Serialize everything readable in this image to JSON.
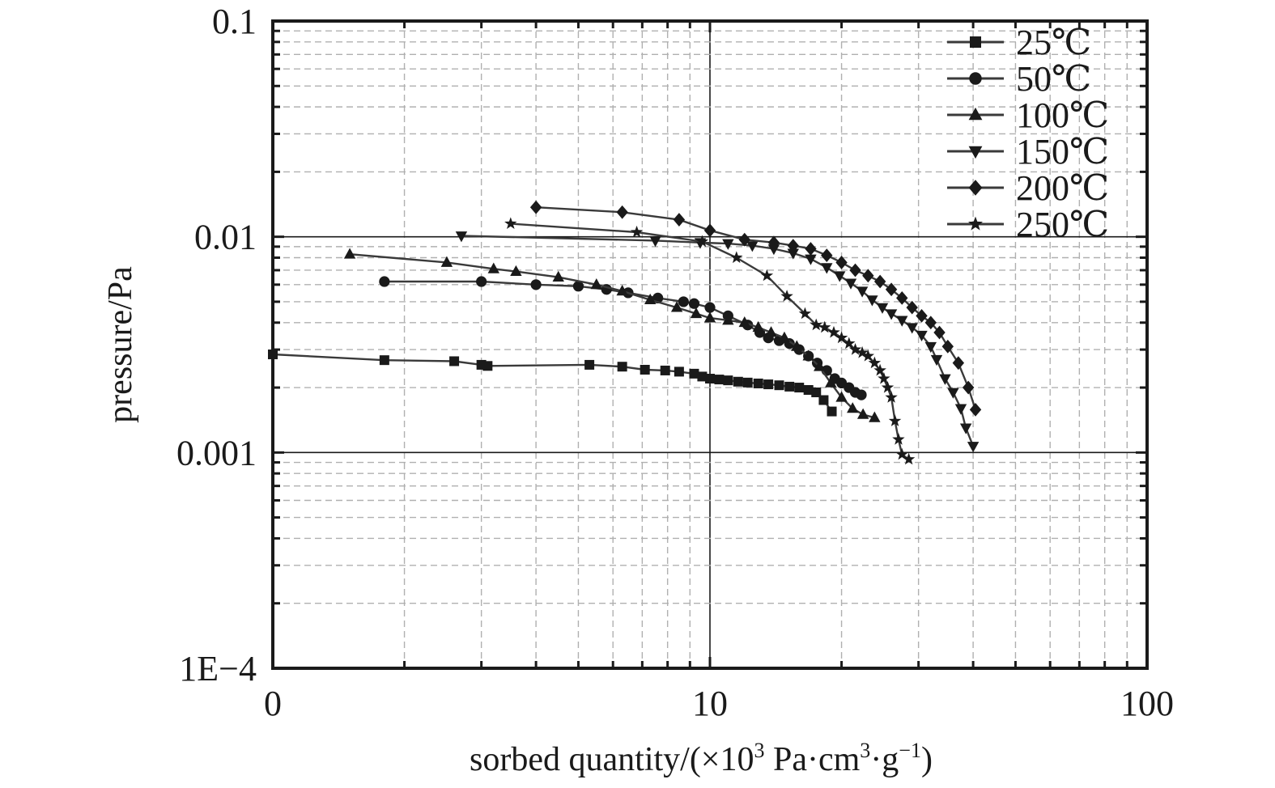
{
  "chart_data": {
    "type": "line",
    "title": "",
    "xlabel": "sorbed quantity/(×10",
    "xlabel_sup1": "3",
    "xlabel_mid": " Pa·cm",
    "xlabel_sup2": "3",
    "xlabel_mid2": "·g",
    "xlabel_sup3": "−1",
    "xlabel_end": ")",
    "ylabel": "pressure/Pa",
    "xscale": "log",
    "yscale": "log",
    "xlim": [
      1,
      100
    ],
    "ylim": [
      0.0001,
      0.1
    ],
    "x_tick_labels": [
      "0",
      "10",
      "100"
    ],
    "y_tick_labels": [
      "0.1",
      "0.01",
      "0.001",
      "1E−4"
    ],
    "grid": true,
    "legend_position": "top-right",
    "colors": {
      "line": "#3a3a3a",
      "axis": "#1a1a1a",
      "grid_major": "#1a1a1a",
      "grid_minor": "#b0b0b0"
    },
    "series": [
      {
        "name": "25℃",
        "marker": "square",
        "x": [
          1.0,
          1.8,
          2.6,
          3.0,
          3.1,
          5.3,
          6.3,
          7.1,
          7.9,
          8.5,
          9.2,
          9.6,
          10.0,
          10.5,
          11.0,
          11.6,
          12.2,
          12.9,
          13.6,
          14.4,
          15.2,
          16.0,
          16.8,
          17.5,
          18.2,
          19.0
        ],
        "y": [
          0.00285,
          0.00268,
          0.00265,
          0.00255,
          0.00252,
          0.00255,
          0.0025,
          0.00242,
          0.0024,
          0.00237,
          0.00232,
          0.00225,
          0.0022,
          0.00218,
          0.00216,
          0.00213,
          0.00211,
          0.00209,
          0.00207,
          0.00205,
          0.00202,
          0.002,
          0.00195,
          0.0019,
          0.00175,
          0.00155
        ]
      },
      {
        "name": "50℃",
        "marker": "circle",
        "x": [
          1.8,
          3.0,
          4.0,
          5.0,
          5.8,
          6.5,
          7.6,
          8.7,
          9.2,
          10.0,
          11.0,
          12.2,
          13.0,
          13.6,
          14.4,
          15.2,
          16.0,
          16.8,
          17.6,
          18.5,
          19.3,
          20.0,
          20.8,
          21.5,
          22.2
        ],
        "y": [
          0.0062,
          0.0062,
          0.006,
          0.0059,
          0.0057,
          0.0055,
          0.0052,
          0.005,
          0.0049,
          0.0047,
          0.0043,
          0.0039,
          0.0036,
          0.0034,
          0.0033,
          0.0032,
          0.003,
          0.0028,
          0.0026,
          0.0024,
          0.0022,
          0.0021,
          0.002,
          0.0019,
          0.00185
        ]
      },
      {
        "name": "100℃",
        "marker": "triangle-up",
        "x": [
          1.5,
          2.5,
          3.2,
          3.6,
          4.5,
          5.5,
          6.3,
          7.3,
          8.4,
          9.3,
          10.0,
          11.0,
          12.0,
          12.9,
          13.8,
          14.8,
          15.8,
          16.8,
          17.8,
          18.9,
          20.0,
          21.2,
          22.4,
          23.8
        ],
        "y": [
          0.0083,
          0.0076,
          0.0071,
          0.0069,
          0.0065,
          0.006,
          0.0056,
          0.0051,
          0.0047,
          0.0044,
          0.0042,
          0.0041,
          0.004,
          0.0038,
          0.0036,
          0.0034,
          0.0031,
          0.0028,
          0.0025,
          0.0021,
          0.0018,
          0.0016,
          0.0015,
          0.00145
        ]
      },
      {
        "name": "150℃",
        "marker": "triangle-down",
        "x": [
          2.7,
          7.5,
          9.5,
          11.0,
          12.5,
          14.0,
          15.5,
          17.0,
          18.5,
          19.8,
          21.0,
          22.3,
          23.5,
          24.8,
          26.0,
          27.5,
          29.0,
          30.5,
          32.0,
          33.0,
          34.5,
          36.0,
          37.5,
          38.5,
          40.0
        ],
        "y": [
          0.0101,
          0.0096,
          0.0094,
          0.0093,
          0.0091,
          0.0088,
          0.0084,
          0.0079,
          0.0072,
          0.0066,
          0.0061,
          0.0056,
          0.0051,
          0.0047,
          0.0044,
          0.0041,
          0.0038,
          0.0035,
          0.0031,
          0.0027,
          0.0022,
          0.0019,
          0.0016,
          0.0013,
          0.00107
        ]
      },
      {
        "name": "200℃",
        "marker": "diamond",
        "x": [
          4.0,
          6.3,
          8.5,
          10.0,
          12.0,
          14.0,
          15.5,
          17.0,
          18.5,
          20.0,
          21.5,
          23.0,
          24.5,
          26.0,
          27.5,
          29.0,
          30.5,
          32.0,
          33.5,
          35.0,
          37.0,
          39.0,
          40.5
        ],
        "y": [
          0.0137,
          0.013,
          0.012,
          0.0107,
          0.0097,
          0.0094,
          0.0091,
          0.0088,
          0.0082,
          0.0076,
          0.007,
          0.0066,
          0.0062,
          0.0057,
          0.0052,
          0.0047,
          0.0043,
          0.004,
          0.0036,
          0.0031,
          0.0026,
          0.002,
          0.00158
        ]
      },
      {
        "name": "250℃",
        "marker": "star",
        "x": [
          3.5,
          6.8,
          9.6,
          11.5,
          13.5,
          15.0,
          16.5,
          17.5,
          18.3,
          19.2,
          20.0,
          20.8,
          21.5,
          22.3,
          23.0,
          23.8,
          24.5,
          25.0,
          25.5,
          26.0,
          26.5,
          27.0,
          27.5,
          28.5
        ],
        "y": [
          0.0115,
          0.0105,
          0.0095,
          0.008,
          0.0066,
          0.0053,
          0.0044,
          0.0039,
          0.0038,
          0.0036,
          0.0034,
          0.0032,
          0.003,
          0.0029,
          0.0028,
          0.0026,
          0.0024,
          0.0022,
          0.002,
          0.0018,
          0.0014,
          0.00115,
          0.00098,
          0.00093
        ]
      }
    ]
  }
}
